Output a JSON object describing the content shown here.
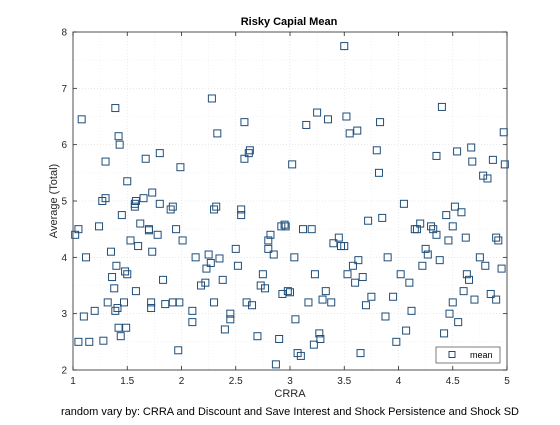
{
  "chart_data": {
    "type": "scatter",
    "title": "Risky Capial Mean",
    "xlabel": "CRRA",
    "ylabel": "Average (Total)",
    "caption": "random vary by: CRRA and Discount and Save Interest and Shock Persistence and Shock SD",
    "xlim": [
      1,
      5
    ],
    "ylim": [
      2,
      8
    ],
    "xticks": [
      "1",
      "1.5",
      "2",
      "2.5",
      "3",
      "3.5",
      "4",
      "4.5",
      "5"
    ],
    "yticks": [
      "2",
      "3",
      "4",
      "5",
      "6",
      "7",
      "8"
    ],
    "grid": true,
    "legend_position": "bottom-right",
    "marker_color": "#1f4e79",
    "series": [
      {
        "name": "mean",
        "points": [
          [
            1.02,
            4.4
          ],
          [
            1.05,
            4.5
          ],
          [
            1.05,
            2.5
          ],
          [
            1.08,
            6.45
          ],
          [
            1.1,
            2.95
          ],
          [
            1.12,
            4.0
          ],
          [
            1.15,
            2.5
          ],
          [
            1.2,
            3.05
          ],
          [
            1.24,
            4.55
          ],
          [
            1.27,
            5.0
          ],
          [
            1.28,
            2.52
          ],
          [
            1.3,
            5.05
          ],
          [
            1.3,
            5.7
          ],
          [
            1.32,
            3.2
          ],
          [
            1.35,
            4.1
          ],
          [
            1.36,
            3.65
          ],
          [
            1.38,
            3.45
          ],
          [
            1.39,
            3.05
          ],
          [
            1.39,
            6.65
          ],
          [
            1.4,
            3.85
          ],
          [
            1.41,
            3.1
          ],
          [
            1.42,
            6.15
          ],
          [
            1.42,
            2.75
          ],
          [
            1.43,
            6.0
          ],
          [
            1.44,
            2.6
          ],
          [
            1.45,
            4.75
          ],
          [
            1.47,
            3.2
          ],
          [
            1.48,
            3.75
          ],
          [
            1.49,
            2.75
          ],
          [
            1.5,
            3.7
          ],
          [
            1.5,
            5.35
          ],
          [
            1.53,
            4.3
          ],
          [
            1.57,
            4.95
          ],
          [
            1.57,
            4.9
          ],
          [
            1.58,
            3.4
          ],
          [
            1.58,
            5.0
          ],
          [
            1.6,
            4.2
          ],
          [
            1.62,
            4.6
          ],
          [
            1.65,
            5.05
          ],
          [
            1.67,
            5.75
          ],
          [
            1.7,
            4.5
          ],
          [
            1.7,
            4.48
          ],
          [
            1.72,
            3.2
          ],
          [
            1.72,
            3.1
          ],
          [
            1.73,
            4.1
          ],
          [
            1.73,
            5.15
          ],
          [
            1.78,
            4.4
          ],
          [
            1.8,
            5.85
          ],
          [
            1.8,
            4.95
          ],
          [
            1.83,
            3.6
          ],
          [
            1.85,
            3.17
          ],
          [
            1.9,
            4.85
          ],
          [
            1.92,
            3.2
          ],
          [
            1.92,
            4.9
          ],
          [
            1.95,
            4.5
          ],
          [
            1.97,
            2.35
          ],
          [
            1.98,
            3.2
          ],
          [
            1.99,
            5.6
          ],
          [
            2.01,
            4.3
          ],
          [
            2.1,
            2.85
          ],
          [
            2.1,
            3.05
          ],
          [
            2.13,
            4.0
          ],
          [
            2.18,
            3.5
          ],
          [
            2.22,
            3.55
          ],
          [
            2.23,
            3.8
          ],
          [
            2.25,
            4.05
          ],
          [
            2.27,
            3.9
          ],
          [
            2.28,
            6.82
          ],
          [
            2.3,
            4.85
          ],
          [
            2.3,
            3.2
          ],
          [
            2.32,
            4.9
          ],
          [
            2.33,
            6.2
          ],
          [
            2.35,
            3.98
          ],
          [
            2.38,
            3.6
          ],
          [
            2.4,
            2.72
          ],
          [
            2.45,
            3.0
          ],
          [
            2.45,
            2.9
          ],
          [
            2.5,
            4.15
          ],
          [
            2.52,
            3.85
          ],
          [
            2.55,
            4.75
          ],
          [
            2.55,
            4.85
          ],
          [
            2.58,
            5.75
          ],
          [
            2.58,
            6.4
          ],
          [
            2.6,
            3.2
          ],
          [
            2.62,
            5.85
          ],
          [
            2.63,
            5.9
          ],
          [
            2.65,
            3.15
          ],
          [
            2.7,
            2.6
          ],
          [
            2.73,
            3.5
          ],
          [
            2.75,
            3.7
          ],
          [
            2.77,
            3.45
          ],
          [
            2.8,
            4.3
          ],
          [
            2.8,
            4.15
          ],
          [
            2.82,
            4.4
          ],
          [
            2.85,
            4.05
          ],
          [
            2.87,
            2.1
          ],
          [
            2.9,
            2.55
          ],
          [
            2.92,
            4.55
          ],
          [
            2.93,
            3.35
          ],
          [
            2.95,
            4.58
          ],
          [
            2.96,
            4.55
          ],
          [
            2.98,
            3.4
          ],
          [
            3.0,
            3.38
          ],
          [
            3.02,
            5.65
          ],
          [
            3.04,
            4.0
          ],
          [
            3.05,
            2.9
          ],
          [
            3.07,
            2.3
          ],
          [
            3.1,
            2.25
          ],
          [
            3.12,
            4.5
          ],
          [
            3.15,
            6.35
          ],
          [
            3.17,
            3.2
          ],
          [
            3.2,
            4.5
          ],
          [
            3.22,
            2.45
          ],
          [
            3.23,
            3.7
          ],
          [
            3.25,
            6.57
          ],
          [
            3.27,
            2.65
          ],
          [
            3.28,
            2.55
          ],
          [
            3.3,
            3.25
          ],
          [
            3.33,
            3.4
          ],
          [
            3.35,
            6.45
          ],
          [
            3.38,
            3.2
          ],
          [
            3.4,
            4.25
          ],
          [
            3.45,
            4.35
          ],
          [
            3.47,
            4.2
          ],
          [
            3.5,
            4.2
          ],
          [
            3.5,
            7.75
          ],
          [
            3.52,
            6.5
          ],
          [
            3.53,
            3.7
          ],
          [
            3.55,
            6.2
          ],
          [
            3.58,
            3.85
          ],
          [
            3.6,
            3.55
          ],
          [
            3.62,
            6.25
          ],
          [
            3.63,
            3.95
          ],
          [
            3.65,
            2.3
          ],
          [
            3.67,
            3.65
          ],
          [
            3.7,
            3.15
          ],
          [
            3.72,
            4.65
          ],
          [
            3.75,
            3.3
          ],
          [
            3.8,
            5.9
          ],
          [
            3.82,
            5.5
          ],
          [
            3.83,
            6.4
          ],
          [
            3.85,
            4.7
          ],
          [
            3.88,
            2.95
          ],
          [
            3.9,
            4.0
          ],
          [
            3.95,
            3.3
          ],
          [
            3.98,
            2.5
          ],
          [
            4.02,
            3.7
          ],
          [
            4.05,
            4.95
          ],
          [
            4.07,
            2.7
          ],
          [
            4.1,
            3.55
          ],
          [
            4.12,
            3.05
          ],
          [
            4.15,
            4.5
          ],
          [
            4.17,
            4.5
          ],
          [
            4.2,
            4.6
          ],
          [
            4.22,
            3.85
          ],
          [
            4.25,
            4.15
          ],
          [
            4.27,
            4.05
          ],
          [
            4.3,
            4.55
          ],
          [
            4.32,
            4.5
          ],
          [
            4.35,
            4.4
          ],
          [
            4.35,
            5.8
          ],
          [
            4.38,
            3.95
          ],
          [
            4.4,
            6.67
          ],
          [
            4.42,
            2.65
          ],
          [
            4.44,
            4.75
          ],
          [
            4.46,
            4.3
          ],
          [
            4.47,
            3.0
          ],
          [
            4.5,
            3.2
          ],
          [
            4.5,
            4.55
          ],
          [
            4.52,
            4.9
          ],
          [
            4.54,
            5.88
          ],
          [
            4.55,
            2.85
          ],
          [
            4.58,
            4.8
          ],
          [
            4.6,
            3.4
          ],
          [
            4.62,
            4.35
          ],
          [
            4.63,
            3.7
          ],
          [
            4.65,
            3.6
          ],
          [
            4.67,
            5.95
          ],
          [
            4.68,
            5.7
          ],
          [
            4.7,
            3.25
          ],
          [
            4.75,
            4.0
          ],
          [
            4.78,
            5.45
          ],
          [
            4.8,
            3.85
          ],
          [
            4.82,
            5.4
          ],
          [
            4.85,
            3.35
          ],
          [
            4.87,
            5.73
          ],
          [
            4.9,
            3.25
          ],
          [
            4.9,
            4.35
          ],
          [
            4.92,
            4.3
          ],
          [
            4.95,
            3.8
          ],
          [
            4.97,
            6.22
          ],
          [
            4.98,
            5.65
          ]
        ]
      }
    ]
  }
}
